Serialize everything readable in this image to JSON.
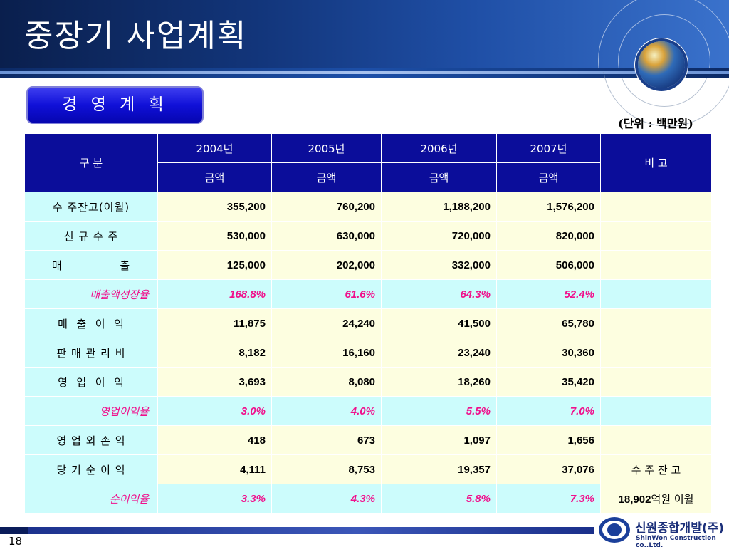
{
  "title": "중장기 사업계획",
  "section_label": "경 영 계 획",
  "unit_label": "(단위 : 백만원)",
  "table": {
    "header_col": "구      분",
    "years": [
      "2004년",
      "2005년",
      "2006년",
      "2007년"
    ],
    "amount_label": "금액",
    "note_header": "비 고",
    "rows": [
      {
        "label": "수 주잔고(이월)",
        "values": [
          "355,200",
          "760,200",
          "1,188,200",
          "1,576,200"
        ],
        "note": "",
        "type": "normal"
      },
      {
        "label": "신   규   수   주",
        "values": [
          "530,000",
          "630,000",
          "720,000",
          "820,000"
        ],
        "note": "",
        "type": "normal"
      },
      {
        "label": "매              출",
        "values": [
          "125,000",
          "202,000",
          "332,000",
          "506,000"
        ],
        "note": "",
        "type": "normal"
      },
      {
        "label": "매출액성장율",
        "values": [
          "168.8%",
          "61.6%",
          "64.3%",
          "52.4%"
        ],
        "note": "",
        "type": "pct"
      },
      {
        "label": "매  출  이  익",
        "values": [
          "11,875",
          "24,240",
          "41,500",
          "65,780"
        ],
        "note": "",
        "type": "normal"
      },
      {
        "label": "판 매 관 리 비",
        "values": [
          "8,182",
          "16,160",
          "23,240",
          "30,360"
        ],
        "note": "",
        "type": "normal"
      },
      {
        "label": "영  업  이  익",
        "values": [
          "3,693",
          "8,080",
          "18,260",
          "35,420"
        ],
        "note": "",
        "type": "normal"
      },
      {
        "label": "영업이익율",
        "values": [
          "3.0%",
          "4.0%",
          "5.5%",
          "7.0%"
        ],
        "note": "",
        "type": "pct"
      },
      {
        "label": "영 업 외 손 익",
        "values": [
          "418",
          "673",
          "1,097",
          "1,656"
        ],
        "note": "",
        "type": "normal"
      },
      {
        "label": "당 기 순 이 익",
        "values": [
          "4,111",
          "8,753",
          "19,357",
          "37,076"
        ],
        "note": "수 주 잔 고",
        "type": "normal"
      },
      {
        "label": "순이익율",
        "values": [
          "3.3%",
          "4.3%",
          "5.8%",
          "7.3%"
        ],
        "note_num": "18,902",
        "note": "억원 이월",
        "type": "pct"
      }
    ]
  },
  "footer": {
    "page_number": "18",
    "company_ko": "신원종합개발(주)",
    "company_en": "ShinWon Construction co.,Ltd."
  },
  "colors": {
    "header_blue": "#12357a",
    "table_header": "#0b0d9a",
    "label_cell": "#ccfcfc",
    "value_cell": "#fdfee0",
    "pct_text": "#f0108c"
  }
}
